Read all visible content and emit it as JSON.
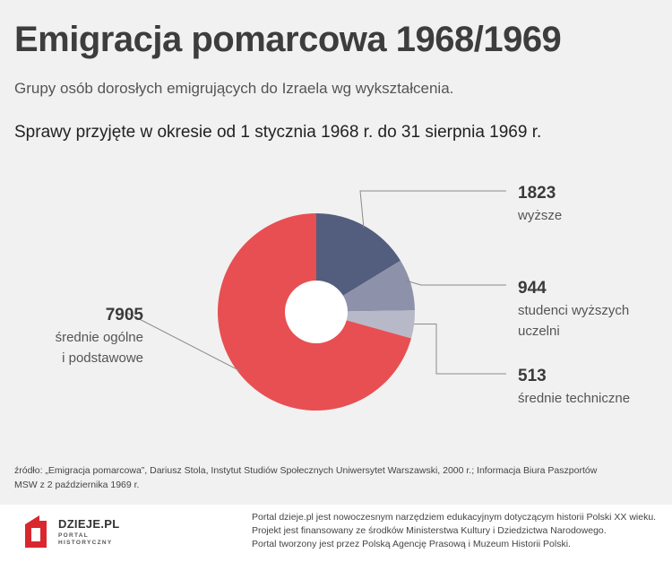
{
  "title": "Emigracja pomarcowa 1968/1969",
  "subtitle": "Grupy osób dorosłych emigrujących do Izraela wg wykształcenia.",
  "period": "Sprawy przyjęte w okresie od 1 stycznia 1968 r. do 31 sierpnia 1969 r.",
  "chart_data": {
    "type": "pie",
    "subtype": "donut",
    "title": "",
    "slices": [
      {
        "value": 1823,
        "value_label": "1823",
        "label_lines": [
          "wyższe"
        ],
        "color": "#535d7e"
      },
      {
        "value": 944,
        "value_label": "944",
        "label_lines": [
          "studenci wyższych",
          "uczelni"
        ],
        "color": "#8e91aa"
      },
      {
        "value": 513,
        "value_label": "513",
        "label_lines": [
          "średnie techniczne"
        ],
        "color": "#b8b9c8"
      },
      {
        "value": 7905,
        "value_label": "7905",
        "label_lines": [
          "średnie ogólne",
          "i podstawowe"
        ],
        "color": "#e84f52"
      }
    ]
  },
  "source_line1": "źródło: „Emigracja pomarcowa”, Dariusz Stola, Instytut Studiów Społecznych Uniwersytet Warszawski, 2000 r.; Informacja Biura Paszportów",
  "source_line2": "MSW z 2 października 1969 r.",
  "footer": {
    "logo_name": "DZIEJE.PL",
    "logo_sub1": "PORTAL",
    "logo_sub2": "HISTORYCZNY",
    "logo_color": "#d9272e",
    "line1": "Portal dzieje.pl jest nowoczesnym narzędziem edukacyjnym dotyczącym historii Polski XX wieku.",
    "line2": "Projekt jest finansowany ze środków Ministerstwa Kultury i Dziedzictwa Narodowego.",
    "line3": "Portal tworzony jest przez Polską Agencję Prasową i Muzeum Historii Polski."
  }
}
